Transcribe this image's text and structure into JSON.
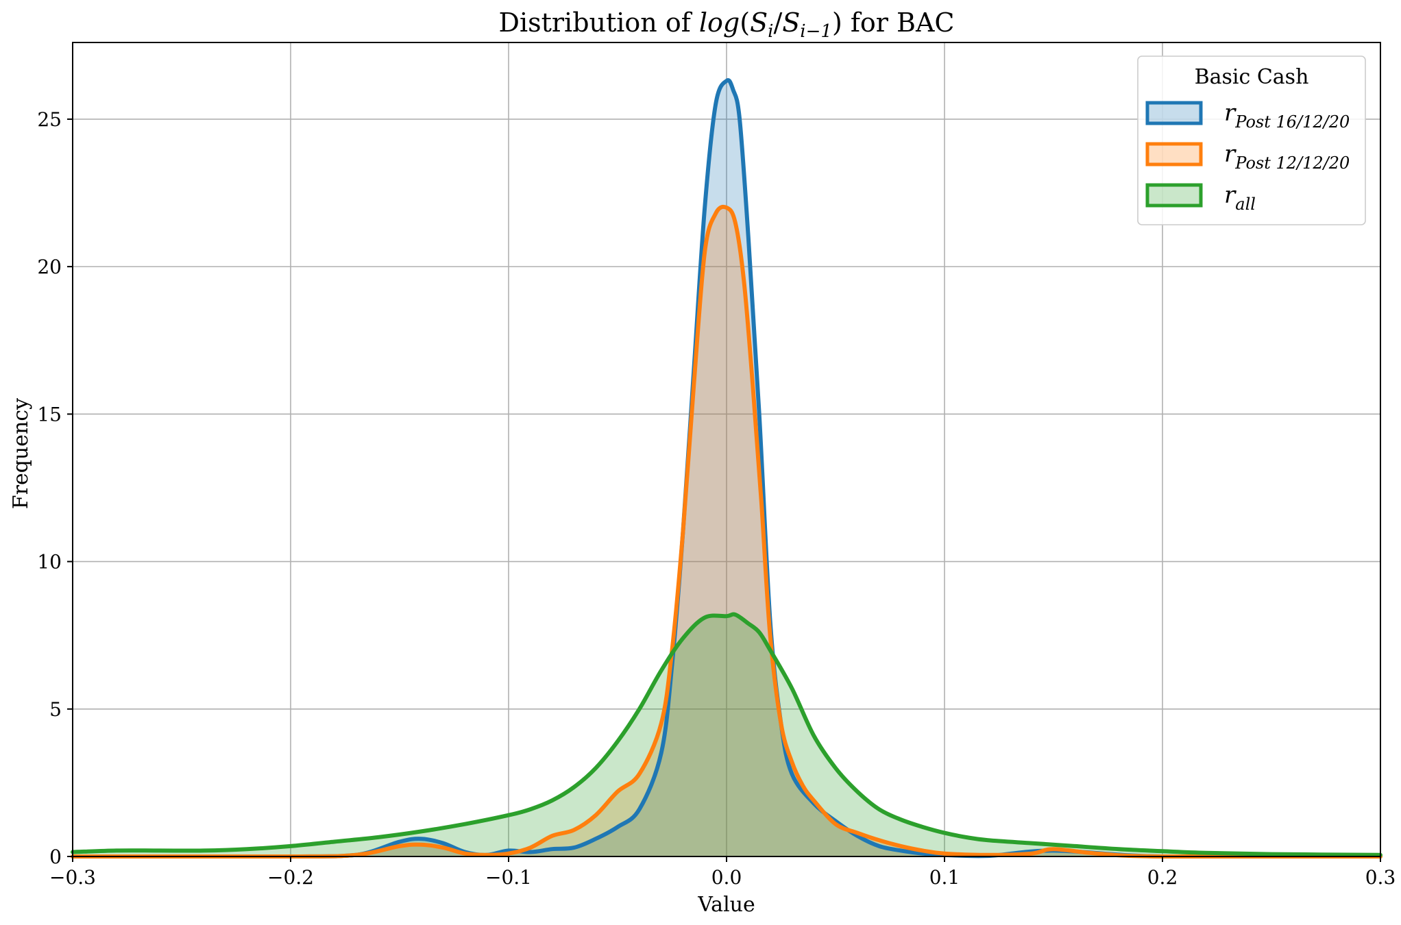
{
  "chart_data": {
    "type": "area",
    "title": "Distribution of log(S_i/S_{i−1}) for BAC",
    "xlabel": "Value",
    "ylabel": "Frequency",
    "xlim": [
      -0.3,
      0.3
    ],
    "ylim": [
      0,
      27.6
    ],
    "xticks": [
      -0.3,
      -0.2,
      -0.1,
      0.0,
      0.1,
      0.2,
      0.3
    ],
    "xtick_labels": [
      "−0.3",
      "−0.2",
      "−0.1",
      "0.0",
      "0.1",
      "0.2",
      "0.3"
    ],
    "yticks": [
      0,
      5,
      10,
      15,
      20,
      25
    ],
    "ytick_labels": [
      "0",
      "5",
      "10",
      "15",
      "20",
      "25"
    ],
    "grid": true,
    "legend": {
      "title": "Basic Cash",
      "placement": "top-right"
    },
    "series": [
      {
        "name": "r_{Post 16/12/20}",
        "name_base": "r",
        "name_sub": "Post 16/12/20",
        "color": "#1f77b4",
        "x": [
          -0.3,
          -0.2,
          -0.17,
          -0.15,
          -0.14,
          -0.13,
          -0.12,
          -0.11,
          -0.1,
          -0.09,
          -0.08,
          -0.07,
          -0.06,
          -0.05,
          -0.04,
          -0.03,
          -0.025,
          -0.02,
          -0.015,
          -0.01,
          -0.005,
          0.0,
          0.003,
          0.006,
          0.01,
          0.015,
          0.02,
          0.025,
          0.03,
          0.04,
          0.05,
          0.06,
          0.07,
          0.08,
          0.09,
          0.1,
          0.12,
          0.15,
          0.2,
          0.3
        ],
        "values": [
          0.0,
          0.0,
          0.05,
          0.5,
          0.6,
          0.45,
          0.15,
          0.05,
          0.2,
          0.15,
          0.25,
          0.3,
          0.6,
          1.0,
          1.6,
          3.5,
          6.5,
          11.0,
          16.5,
          22.0,
          25.5,
          26.3,
          26.0,
          25.0,
          21.0,
          15.0,
          8.0,
          4.5,
          2.8,
          1.8,
          1.2,
          0.7,
          0.35,
          0.2,
          0.1,
          0.05,
          0.02,
          0.2,
          0.0,
          0.0
        ]
      },
      {
        "name": "r_{Post 12/12/20}",
        "name_base": "r",
        "name_sub": "Post 12/12/20",
        "color": "#ff7f0e",
        "x": [
          -0.3,
          -0.2,
          -0.17,
          -0.15,
          -0.14,
          -0.13,
          -0.12,
          -0.11,
          -0.1,
          -0.09,
          -0.08,
          -0.07,
          -0.06,
          -0.05,
          -0.04,
          -0.03,
          -0.025,
          -0.02,
          -0.015,
          -0.01,
          -0.005,
          0.0,
          0.004,
          0.008,
          0.012,
          0.016,
          0.02,
          0.025,
          0.03,
          0.035,
          0.04,
          0.05,
          0.06,
          0.07,
          0.08,
          0.09,
          0.1,
          0.12,
          0.14,
          0.15,
          0.17,
          0.2,
          0.3
        ],
        "values": [
          0.0,
          0.0,
          0.05,
          0.35,
          0.4,
          0.3,
          0.1,
          0.05,
          0.1,
          0.3,
          0.7,
          0.9,
          1.4,
          2.2,
          2.8,
          4.5,
          7.0,
          11.0,
          16.0,
          20.5,
          21.8,
          22.0,
          21.5,
          19.5,
          16.0,
          12.0,
          7.5,
          4.5,
          3.2,
          2.4,
          1.9,
          1.1,
          0.8,
          0.55,
          0.35,
          0.2,
          0.1,
          0.05,
          0.1,
          0.25,
          0.1,
          0.0,
          0.0
        ]
      },
      {
        "name": "r_{all}",
        "name_base": "r",
        "name_sub": "all",
        "color": "#2ca02c",
        "x": [
          -0.3,
          -0.28,
          -0.26,
          -0.24,
          -0.22,
          -0.2,
          -0.18,
          -0.16,
          -0.14,
          -0.12,
          -0.1,
          -0.09,
          -0.08,
          -0.07,
          -0.06,
          -0.05,
          -0.04,
          -0.03,
          -0.02,
          -0.01,
          0.0,
          0.004,
          0.01,
          0.015,
          0.02,
          0.03,
          0.04,
          0.05,
          0.06,
          0.07,
          0.08,
          0.09,
          0.1,
          0.11,
          0.12,
          0.14,
          0.16,
          0.18,
          0.2,
          0.22,
          0.25,
          0.3
        ],
        "values": [
          0.15,
          0.2,
          0.2,
          0.2,
          0.25,
          0.35,
          0.5,
          0.65,
          0.85,
          1.1,
          1.4,
          1.6,
          1.9,
          2.35,
          3.0,
          3.9,
          5.0,
          6.3,
          7.4,
          8.1,
          8.15,
          8.2,
          7.9,
          7.6,
          7.0,
          5.7,
          4.1,
          3.0,
          2.2,
          1.6,
          1.25,
          1.0,
          0.8,
          0.65,
          0.55,
          0.45,
          0.35,
          0.25,
          0.18,
          0.12,
          0.08,
          0.05
        ]
      }
    ]
  }
}
